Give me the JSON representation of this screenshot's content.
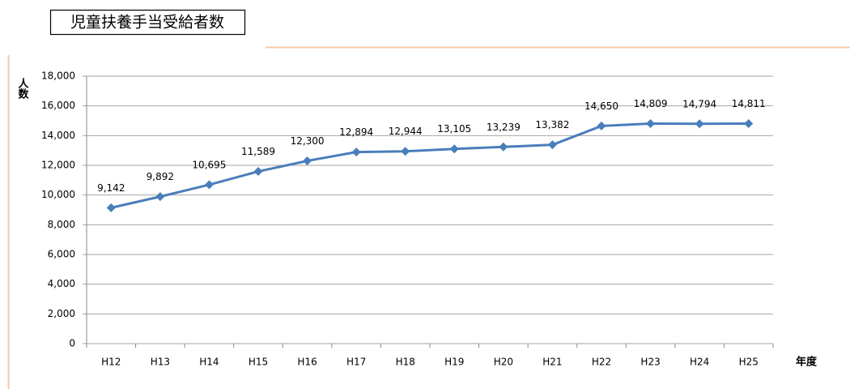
{
  "chart_data": {
    "type": "line",
    "title": "児童扶養手当受給者数",
    "y_label": "人数",
    "x_label": "年度",
    "categories": [
      "H12",
      "H13",
      "H14",
      "H15",
      "H16",
      "H17",
      "H18",
      "H19",
      "H20",
      "H21",
      "H22",
      "H23",
      "H24",
      "H25"
    ],
    "series": [
      {
        "name": "受給者数",
        "color": "#4a7ebb",
        "values": [
          9142,
          9892,
          10695,
          11589,
          12300,
          12894,
          12944,
          13105,
          13239,
          13382,
          14650,
          14809,
          14794,
          14811
        ],
        "value_labels": [
          "9,142",
          "9,892",
          "10,695",
          "11,589",
          "12,300",
          "12,894",
          "12,944",
          "13,105",
          "13,239",
          "13,382",
          "14,650",
          "14,809",
          "14,794",
          "14,811"
        ]
      }
    ],
    "ylim": [
      0,
      18000
    ],
    "yticks": [
      0,
      {
        "value": 2000,
        "label": "2,000"
      },
      {
        "value": 4000,
        "label": "4,000"
      },
      {
        "value": 6000,
        "label": "6,000"
      },
      {
        "value": 8000,
        "label": "8,000"
      },
      {
        "value": 10000,
        "label": "10,000"
      },
      {
        "value": 12000,
        "label": "12,000"
      },
      {
        "value": 14000,
        "label": "14,000"
      },
      {
        "value": 16000,
        "label": "16,000"
      },
      {
        "value": 18000,
        "label": "18,000"
      }
    ],
    "grid": true
  }
}
